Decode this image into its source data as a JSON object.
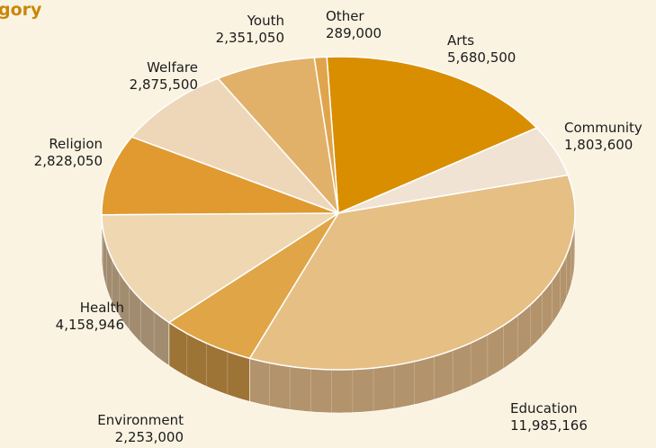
{
  "title_visible": "gory",
  "chart_data": {
    "type": "pie",
    "style": "3d",
    "categories": [
      "Arts",
      "Community",
      "Education",
      "Environment",
      "Health",
      "Religion",
      "Welfare",
      "Youth",
      "Other"
    ],
    "values": [
      5680500,
      1803600,
      11985166,
      2253000,
      4158946,
      2828050,
      2875500,
      2351050,
      289000
    ],
    "labels": [
      "5,680,500",
      "1,803,600",
      "11,985,166",
      "2,253,000",
      "4,158,946",
      "2,828,050",
      "2,875,500",
      "2,351,050",
      "289,000"
    ],
    "colors": [
      "#d98e00",
      "#f0e3d3",
      "#e6bf85",
      "#e0a547",
      "#eed7b1",
      "#e09a30",
      "#eed7b9",
      "#e1b16a",
      "#e0a54c"
    ],
    "side_colors": [
      "#a3782d",
      "#a08a72",
      "#b2936b",
      "#9e7336",
      "#a28c70",
      "#9c7236",
      "#a18b70",
      "#a07a43",
      "#a0773c"
    ]
  }
}
